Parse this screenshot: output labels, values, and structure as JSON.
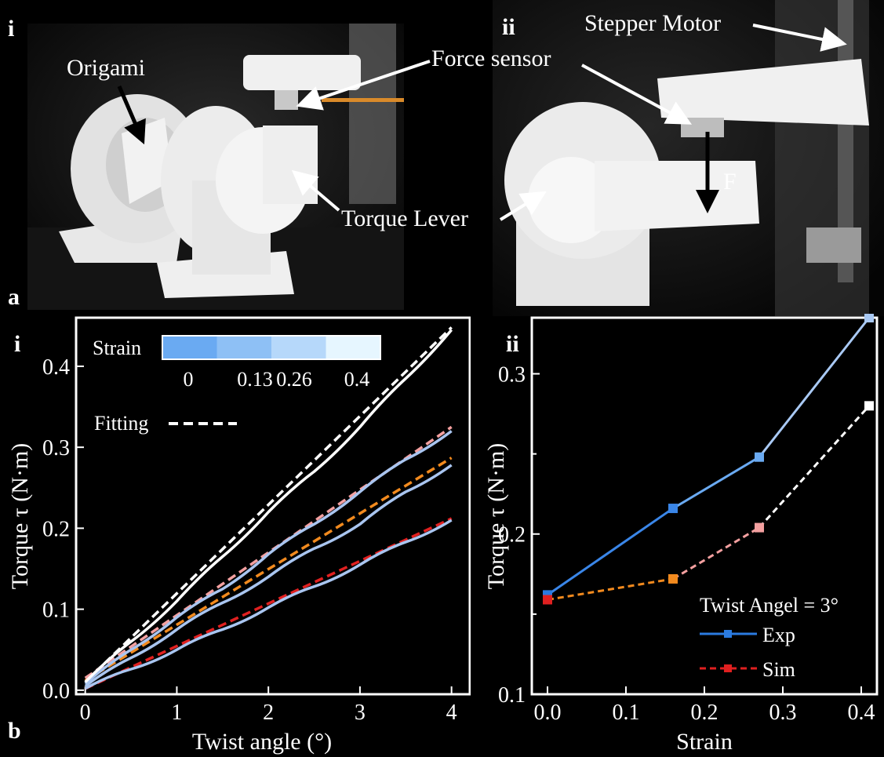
{
  "panel_a": {
    "letter": "a",
    "sub_i": "i",
    "sub_ii": "ii",
    "labels": {
      "origami": "Origami",
      "force_sensor": "Force sensor",
      "torque_lever": "Torque Lever",
      "stepper_motor": "Stepper Motor",
      "force": "F"
    }
  },
  "panel_b": {
    "letter": "b",
    "sub_i": "i",
    "sub_ii": "ii"
  },
  "chart_data": [
    {
      "type": "line",
      "xlabel": "Twist angle (°)",
      "ylabel": "Torque τ (N·m)",
      "xlim": [
        -0.1,
        4.2
      ],
      "ylim": [
        -0.005,
        0.46
      ],
      "xticks": [
        "0",
        "1",
        "2",
        "3",
        "4"
      ],
      "yticks": [
        "0.0",
        "0.1",
        "0.2",
        "0.3",
        "0.4"
      ],
      "legend": {
        "strain_title": "Strain",
        "strain_ticks": [
          "0",
          "0.13",
          "0.26",
          "0.4"
        ],
        "strain_colors": [
          "#6aaaf2",
          "#8ec0f5",
          "#b6d8fa",
          "#e6f6ff"
        ],
        "fitting_label": "Fitting",
        "placement": "top-left"
      },
      "series": [
        {
          "strain": "0",
          "color": "#a9c5f0",
          "fit_color": "#e02020",
          "x": [
            0,
            0.5,
            1,
            1.5,
            2,
            2.5,
            3,
            3.5,
            4
          ],
          "y": [
            0.002,
            0.026,
            0.05,
            0.075,
            0.102,
            0.128,
            0.155,
            0.183,
            0.21
          ],
          "fit_x": [
            0,
            4
          ],
          "fit_y": [
            0.002,
            0.212
          ]
        },
        {
          "strain": "0.13",
          "color": "#a9c5f0",
          "fit_color": "#f28a1e",
          "x": [
            0,
            0.5,
            1,
            1.5,
            2,
            2.5,
            3,
            3.5,
            4
          ],
          "y": [
            0.005,
            0.04,
            0.075,
            0.108,
            0.14,
            0.175,
            0.205,
            0.245,
            0.278
          ],
          "fit_x": [
            0,
            4
          ],
          "fit_y": [
            0.012,
            0.287
          ]
        },
        {
          "strain": "0.26",
          "color": "#a9c5f0",
          "fit_color": "#f4a0a0",
          "x": [
            0,
            0.5,
            1,
            1.5,
            2,
            2.5,
            3,
            3.5,
            4
          ],
          "y": [
            0.008,
            0.05,
            0.09,
            0.125,
            0.168,
            0.205,
            0.245,
            0.285,
            0.32
          ],
          "fit_x": [
            0,
            4
          ],
          "fit_y": [
            0.015,
            0.325
          ]
        },
        {
          "strain": "0.4",
          "color": "#ffffff",
          "fit_color": "#ffffff",
          "x": [
            0,
            0.5,
            1,
            1.5,
            2,
            2.5,
            3,
            3.5,
            4
          ],
          "y": [
            0.01,
            0.06,
            0.11,
            0.165,
            0.22,
            0.27,
            0.325,
            0.385,
            0.445
          ],
          "fit_x": [
            0,
            4
          ],
          "fit_y": [
            0.01,
            0.448
          ]
        }
      ]
    },
    {
      "type": "line",
      "xlabel": "Strain",
      "ylabel": "Torque τ (N·m)",
      "xlim": [
        -0.02,
        0.42
      ],
      "ylim": [
        0.1,
        0.335
      ],
      "xticks": [
        "0.0",
        "0.1",
        "0.2",
        "0.3",
        "0.4"
      ],
      "yticks": [
        "0.1",
        "0.2",
        "0.3"
      ],
      "annotation": "Twist Angel = 3°",
      "legend_placement": "bottom-right",
      "categories": [
        0,
        0.13,
        0.26,
        0.4
      ],
      "series": [
        {
          "name": "Exp",
          "color": "#2b7be0",
          "point_colors": [
            "#2b7be0",
            "#3a86e8",
            "#6aaaf2",
            "#a9c9f4"
          ],
          "x": [
            0,
            0.16,
            0.27,
            0.41
          ],
          "y": [
            0.162,
            0.216,
            0.248,
            0.335
          ]
        },
        {
          "name": "Sim",
          "color": "#e02020",
          "point_colors": [
            "#e02020",
            "#f28a1e",
            "#f4a0a0",
            "#ffffff"
          ],
          "x": [
            0,
            0.16,
            0.27,
            0.41
          ],
          "y": [
            0.159,
            0.172,
            0.204,
            0.28
          ]
        }
      ]
    }
  ]
}
